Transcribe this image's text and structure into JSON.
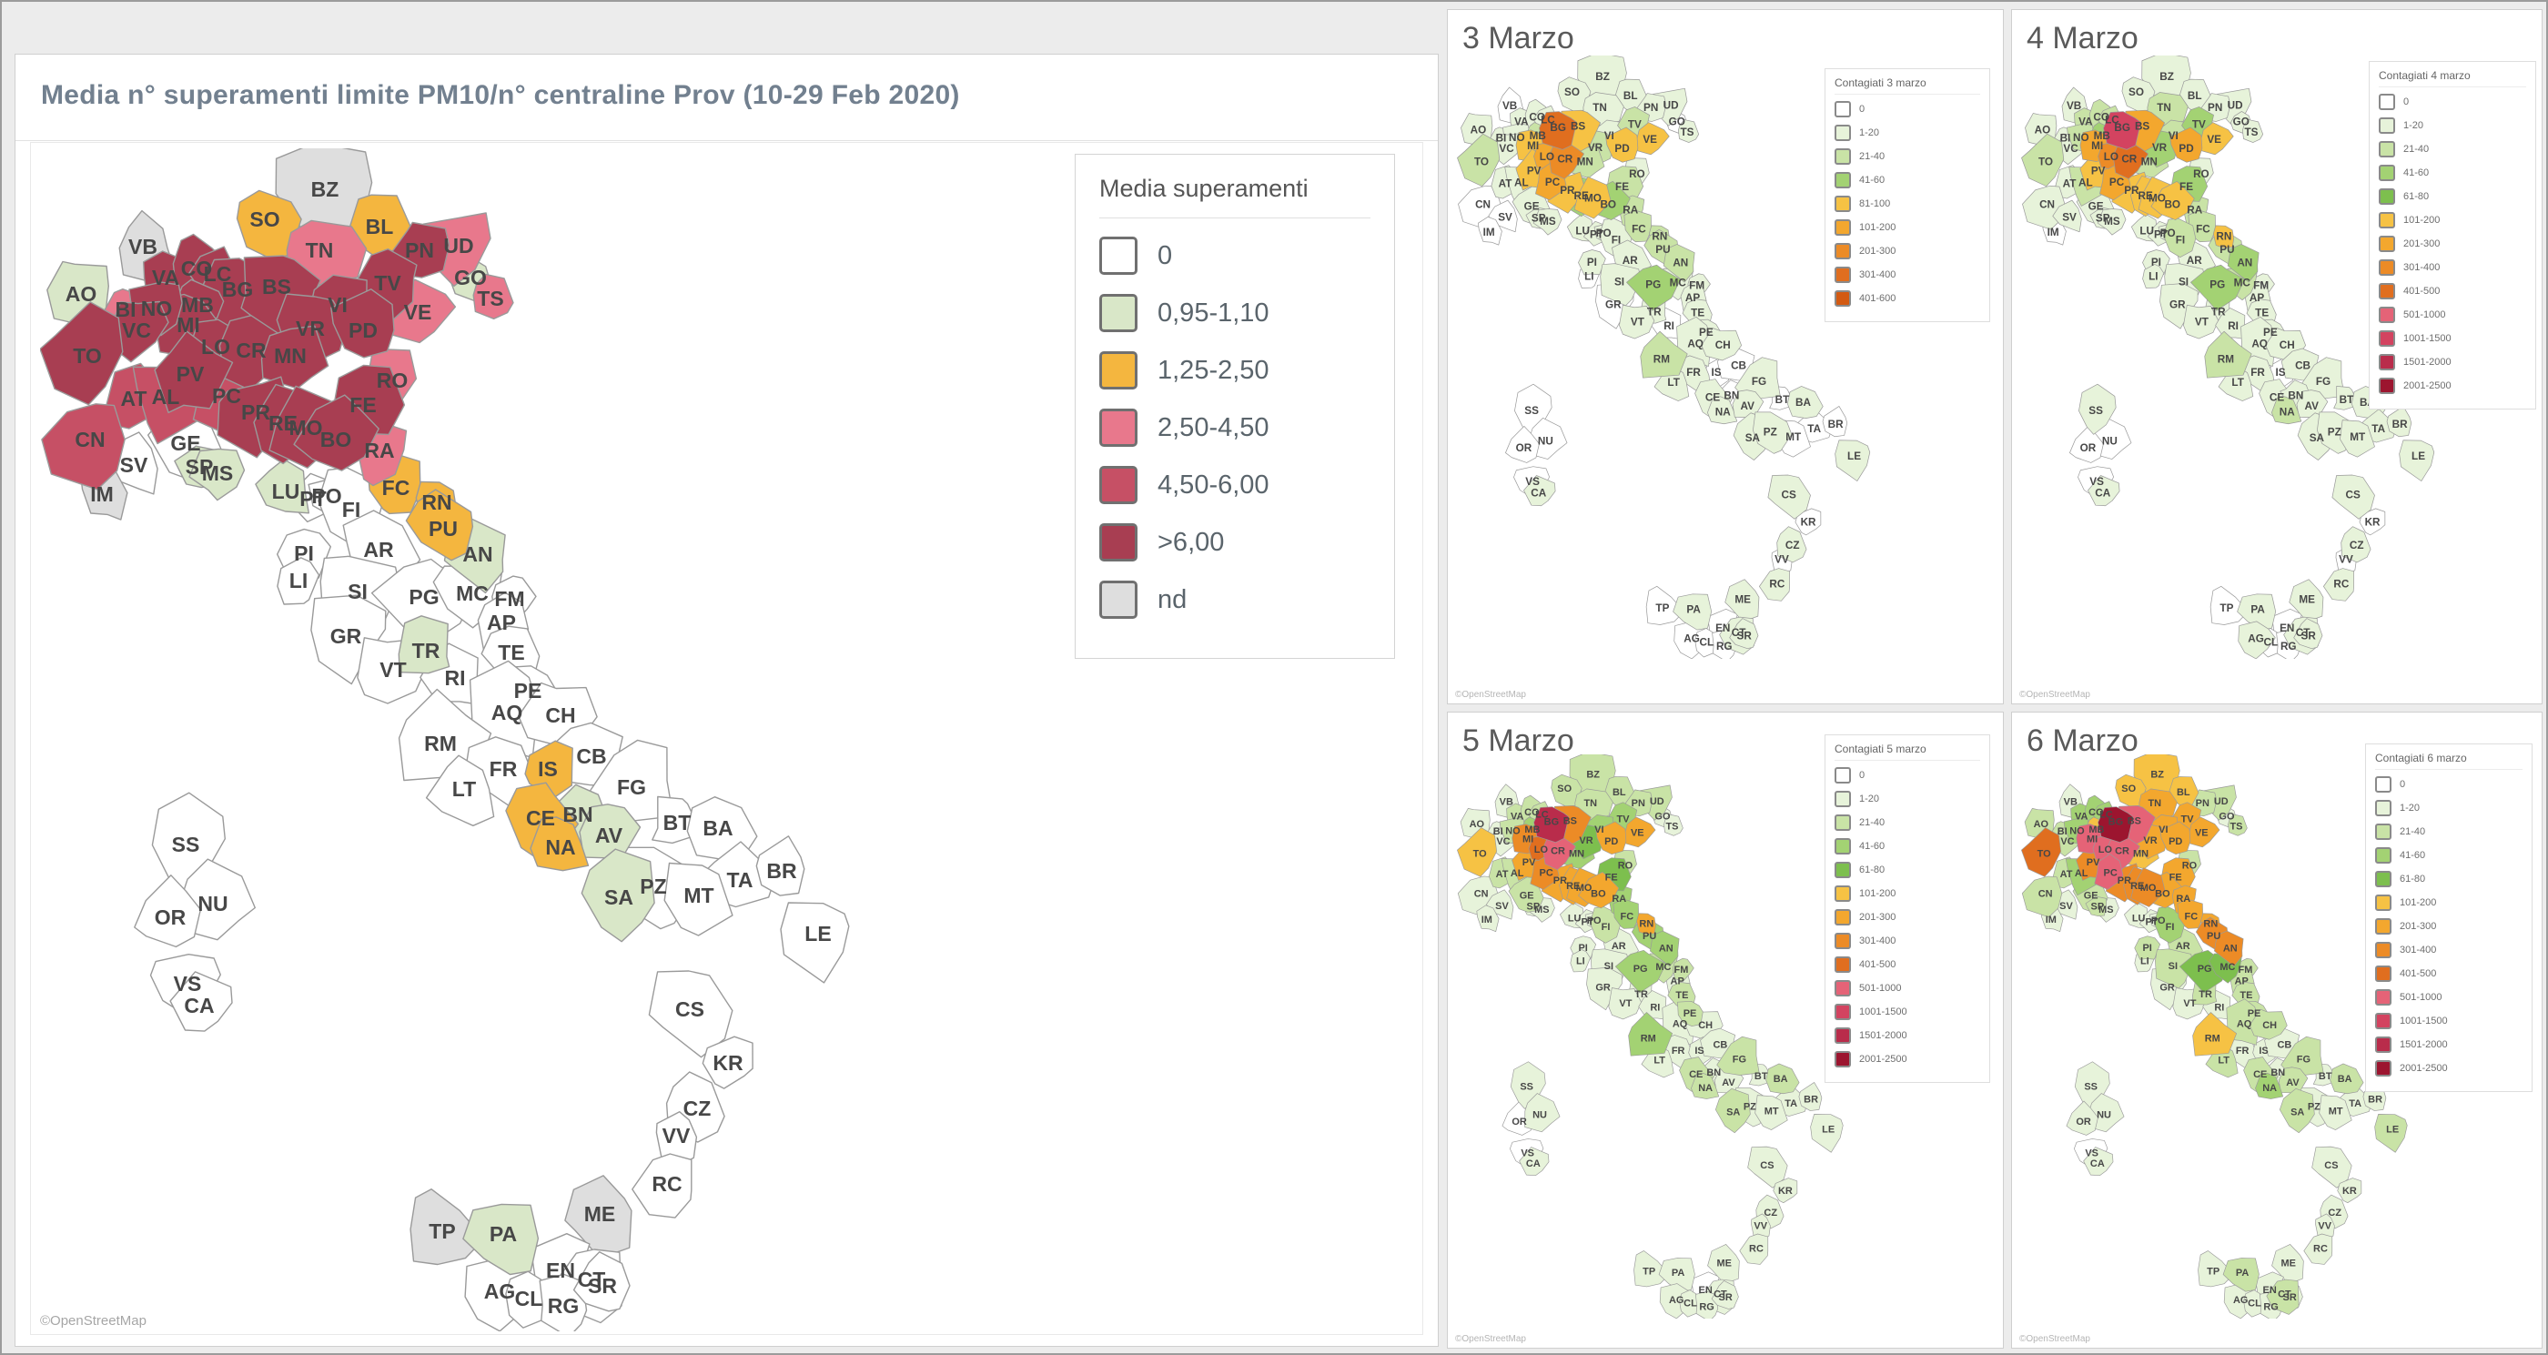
{
  "main_panel": {
    "title": "Media n° superamenti limite PM10/n° centraline Prov (10-29 Feb 2020)",
    "attribution": "©OpenStreetMap",
    "legend": {
      "title": "Media superamenti",
      "items": [
        {
          "label": "0",
          "key": "c0"
        },
        {
          "label": "0,95-1,10",
          "key": "g"
        },
        {
          "label": "1,25-2,50",
          "key": "o"
        },
        {
          "label": "2,50-4,50",
          "key": "p"
        },
        {
          "label": "4,50-6,00",
          "key": "r"
        },
        {
          "label": ">6,00",
          "key": "d"
        },
        {
          "label": "nd",
          "key": "nd"
        }
      ]
    }
  },
  "palette_main": {
    "c0": "#ffffff",
    "g": "#d9e7c8",
    "o": "#f4b63f",
    "p": "#e8788c",
    "r": "#c65065",
    "d": "#a83e52",
    "nd": "#dedede"
  },
  "palette_contagi": {
    "w": "#ffffff",
    "g1": "#e7f3da",
    "g2": "#c9e3a6",
    "g3": "#a3d273",
    "g4": "#7dbf4e",
    "o1": "#f6c244",
    "o2": "#f3a72e",
    "o3": "#ec8b26",
    "o4": "#e06e1f",
    "o5": "#d35a12",
    "p1": "#e56377",
    "r1": "#d34360",
    "r2": "#b92c4b",
    "r3": "#9c152f"
  },
  "small_maps": [
    {
      "id": "m3",
      "title": "3 Marzo",
      "legend_title": "Contagiati 3 marzo",
      "attribution": "©OpenStreetMap",
      "legend_items": [
        {
          "label": "0",
          "key": "w"
        },
        {
          "label": "1-20",
          "key": "g1"
        },
        {
          "label": "21-40",
          "key": "g2"
        },
        {
          "label": "41-60",
          "key": "g3"
        },
        {
          "label": "81-100",
          "key": "o1"
        },
        {
          "label": "101-200",
          "key": "o2"
        },
        {
          "label": "201-300",
          "key": "o3"
        },
        {
          "label": "301-400",
          "key": "o4"
        },
        {
          "label": "401-600",
          "key": "o5"
        }
      ]
    },
    {
      "id": "m4",
      "title": "4 Marzo",
      "legend_title": "Contagiati 4 marzo",
      "attribution": "©OpenStreetMap",
      "legend_items": [
        {
          "label": "0",
          "key": "w"
        },
        {
          "label": "1-20",
          "key": "g1"
        },
        {
          "label": "21-40",
          "key": "g2"
        },
        {
          "label": "41-60",
          "key": "g3"
        },
        {
          "label": "61-80",
          "key": "g4"
        },
        {
          "label": "101-200",
          "key": "o1"
        },
        {
          "label": "201-300",
          "key": "o2"
        },
        {
          "label": "301-400",
          "key": "o3"
        },
        {
          "label": "401-500",
          "key": "o4"
        },
        {
          "label": "501-1000",
          "key": "p1"
        },
        {
          "label": "1001-1500",
          "key": "r1"
        },
        {
          "label": "1501-2000",
          "key": "r2"
        },
        {
          "label": "2001-2500",
          "key": "r3"
        }
      ]
    },
    {
      "id": "m5",
      "title": "5 Marzo",
      "legend_title": "Contagiati 5 marzo",
      "attribution": "©OpenStreetMap",
      "legend_items": [
        {
          "label": "0",
          "key": "w"
        },
        {
          "label": "1-20",
          "key": "g1"
        },
        {
          "label": "21-40",
          "key": "g2"
        },
        {
          "label": "41-60",
          "key": "g3"
        },
        {
          "label": "61-80",
          "key": "g4"
        },
        {
          "label": "101-200",
          "key": "o1"
        },
        {
          "label": "201-300",
          "key": "o2"
        },
        {
          "label": "301-400",
          "key": "o3"
        },
        {
          "label": "401-500",
          "key": "o4"
        },
        {
          "label": "501-1000",
          "key": "p1"
        },
        {
          "label": "1001-1500",
          "key": "r1"
        },
        {
          "label": "1501-2000",
          "key": "r2"
        },
        {
          "label": "2001-2500",
          "key": "r3"
        }
      ]
    },
    {
      "id": "m6",
      "title": "6 Marzo",
      "legend_title": "Contagiati 6 marzo",
      "attribution": "©OpenStreetMap",
      "legend_items": [
        {
          "label": "0",
          "key": "w"
        },
        {
          "label": "1-20",
          "key": "g1"
        },
        {
          "label": "21-40",
          "key": "g2"
        },
        {
          "label": "41-60",
          "key": "g3"
        },
        {
          "label": "61-80",
          "key": "g4"
        },
        {
          "label": "101-200",
          "key": "o1"
        },
        {
          "label": "201-300",
          "key": "o2"
        },
        {
          "label": "301-400",
          "key": "o3"
        },
        {
          "label": "401-500",
          "key": "o4"
        },
        {
          "label": "501-1000",
          "key": "p1"
        },
        {
          "label": "1001-1500",
          "key": "r1"
        },
        {
          "label": "1501-2000",
          "key": "r2"
        },
        {
          "label": "2001-2500",
          "key": "r3"
        }
      ]
    }
  ],
  "provinces": [
    [
      "BZ",
      693,
      225,
      52,
      "nd",
      "g1",
      "g1",
      "g2",
      "o1"
    ],
    [
      "SO",
      627,
      258,
      40,
      "o",
      "g1",
      "g1",
      "g2",
      "o1"
    ],
    [
      "BL",
      753,
      266,
      38,
      "o",
      "g1",
      "g1",
      "g2",
      "o1"
    ],
    [
      "TN",
      687,
      292,
      42,
      "p",
      "g1",
      "g2",
      "g2",
      "o2"
    ],
    [
      "UD",
      840,
      287,
      40,
      "p",
      "g1",
      "g1",
      "g2",
      "g2"
    ],
    [
      "PN",
      797,
      292,
      32,
      "d",
      "g1",
      "g1",
      "g2",
      "g2"
    ],
    [
      "GO",
      853,
      322,
      22,
      "g",
      "w",
      "g1",
      "g1",
      "g1"
    ],
    [
      "TS",
      875,
      345,
      22,
      "p",
      "g1",
      "g1",
      "g1",
      "g2"
    ],
    [
      "VB",
      493,
      288,
      34,
      "nd",
      "w",
      "g1",
      "g1",
      "g1"
    ],
    [
      "AO",
      425,
      340,
      36,
      "g",
      "g1",
      "g1",
      "g1",
      "g2"
    ],
    [
      "VA",
      518,
      322,
      30,
      "d",
      "g1",
      "g2",
      "g2",
      "g3"
    ],
    [
      "CO",
      552,
      312,
      32,
      "d",
      "g1",
      "g2",
      "g2",
      "g3"
    ],
    [
      "LC",
      575,
      318,
      26,
      "d",
      "g1",
      "g2",
      "g2",
      "g3"
    ],
    [
      "BG",
      597,
      335,
      38,
      "d",
      "o4",
      "r1",
      "r2",
      "r3"
    ],
    [
      "BS",
      640,
      332,
      44,
      "d",
      "o1",
      "o2",
      "o3",
      "p1"
    ],
    [
      "TV",
      762,
      328,
      38,
      "d",
      "g2",
      "g3",
      "g3",
      "o2"
    ],
    [
      "VI",
      707,
      352,
      36,
      "d",
      "g1",
      "g2",
      "g3",
      "o2"
    ],
    [
      "VE",
      795,
      360,
      34,
      "p",
      "o1",
      "o1",
      "o2",
      "o2"
    ],
    [
      "VR",
      677,
      378,
      38,
      "d",
      "g2",
      "g3",
      "g4",
      "o2"
    ],
    [
      "PD",
      735,
      380,
      36,
      "d",
      "o1",
      "o2",
      "o2",
      "o2"
    ],
    [
      "MB",
      553,
      352,
      24,
      "d",
      "g2",
      "g3",
      "g3",
      "o1"
    ],
    [
      "MI",
      543,
      374,
      34,
      "d",
      "o1",
      "o2",
      "o3",
      "p1"
    ],
    [
      "BI",
      474,
      357,
      26,
      "p",
      "g1",
      "g1",
      "g1",
      "g2"
    ],
    [
      "NO",
      508,
      356,
      30,
      "d",
      "g1",
      "g2",
      "g2",
      "g3"
    ],
    [
      "VC",
      486,
      380,
      32,
      "d",
      "g1",
      "g1",
      "g1",
      "g2"
    ],
    [
      "LO",
      573,
      398,
      26,
      "d",
      "o2",
      "o3",
      "o4",
      "p1"
    ],
    [
      "CR",
      612,
      402,
      34,
      "d",
      "o3",
      "o4",
      "p1",
      "p1"
    ],
    [
      "MN",
      655,
      408,
      36,
      "d",
      "g2",
      "g2",
      "g3",
      "o1"
    ],
    [
      "TO",
      432,
      408,
      46,
      "d",
      "g2",
      "g2",
      "o1",
      "o4"
    ],
    [
      "PV",
      545,
      428,
      40,
      "d",
      "o1",
      "o1",
      "o2",
      "o3"
    ],
    [
      "AT",
      483,
      455,
      32,
      "r",
      "g1",
      "g1",
      "g2",
      "g2"
    ],
    [
      "AL",
      518,
      453,
      42,
      "r",
      "g1",
      "g2",
      "g2",
      "g3"
    ],
    [
      "PC",
      585,
      452,
      38,
      "r",
      "o2",
      "o2",
      "o3",
      "p1"
    ],
    [
      "PR",
      617,
      470,
      40,
      "d",
      "o1",
      "o1",
      "o2",
      "o3"
    ],
    [
      "RE",
      647,
      482,
      36,
      "d",
      "g3",
      "o1",
      "o2",
      "o3"
    ],
    [
      "MO",
      672,
      487,
      38,
      "d",
      "o1",
      "o1",
      "o2",
      "o3"
    ],
    [
      "FE",
      735,
      462,
      40,
      "d",
      "g2",
      "g3",
      "g4",
      "o2"
    ],
    [
      "RO",
      767,
      435,
      30,
      "p",
      "g1",
      "g1",
      "g2",
      "g2"
    ],
    [
      "BO",
      705,
      500,
      40,
      "d",
      "g3",
      "o1",
      "o2",
      "o2"
    ],
    [
      "RA",
      753,
      512,
      32,
      "p",
      "g2",
      "g2",
      "g3",
      "o2"
    ],
    [
      "CN",
      435,
      500,
      46,
      "r",
      "w",
      "g1",
      "g1",
      "g2"
    ],
    [
      "GE",
      540,
      504,
      36,
      "c0",
      "g1",
      "g1",
      "g2",
      "g2"
    ],
    [
      "SV",
      483,
      528,
      32,
      "c0",
      "w",
      "g1",
      "g1",
      "g1"
    ],
    [
      "IM",
      448,
      560,
      28,
      "nd",
      "w",
      "w",
      "g1",
      "g1"
    ],
    [
      "SP",
      555,
      530,
      24,
      "g",
      "g1",
      "g1",
      "g1",
      "g2"
    ],
    [
      "MS",
      575,
      537,
      26,
      "g",
      "g1",
      "g1",
      "g1",
      "g1"
    ],
    [
      "FC",
      771,
      553,
      34,
      "o",
      "g2",
      "g2",
      "g3",
      "o2"
    ],
    [
      "RN",
      816,
      569,
      26,
      "o",
      "g2",
      "o1",
      "o2",
      "o2"
    ],
    [
      "LU",
      650,
      557,
      28,
      "g",
      "g1",
      "g1",
      "g1",
      "g1"
    ],
    [
      "PT",
      680,
      565,
      24,
      "c0",
      "g1",
      "g1",
      "g1",
      "g1"
    ],
    [
      "PO",
      695,
      562,
      22,
      "c0",
      "g1",
      "g1",
      "g1",
      "g1"
    ],
    [
      "FI",
      722,
      577,
      40,
      "c0",
      "g1",
      "g2",
      "g2",
      "g3"
    ],
    [
      "PU",
      823,
      598,
      34,
      "o",
      "g2",
      "g2",
      "g3",
      "o3"
    ],
    [
      "AN",
      861,
      626,
      34,
      "g",
      "g2",
      "g3",
      "g3",
      "o3"
    ],
    [
      "AR",
      752,
      621,
      40,
      "c0",
      "g1",
      "g1",
      "g1",
      "g2"
    ],
    [
      "PI",
      670,
      625,
      32,
      "c0",
      "g1",
      "g1",
      "g1",
      "g2"
    ],
    [
      "LI",
      664,
      655,
      28,
      "c0",
      "w",
      "g1",
      "g1",
      "g1"
    ],
    [
      "SI",
      729,
      667,
      42,
      "c0",
      "g1",
      "g1",
      "g1",
      "g2"
    ],
    [
      "PG",
      802,
      673,
      48,
      "c0",
      "g3",
      "g3",
      "g3",
      "g4"
    ],
    [
      "MC",
      855,
      669,
      36,
      "c0",
      "g1",
      "g2",
      "g2",
      "g4"
    ],
    [
      "FM",
      896,
      675,
      24,
      "c0",
      "g1",
      "g1",
      "g2",
      "g2"
    ],
    [
      "AP",
      887,
      701,
      28,
      "c0",
      "g1",
      "g1",
      "g1",
      "g2"
    ],
    [
      "TE",
      898,
      734,
      34,
      "c0",
      "g1",
      "g1",
      "g2",
      "g2"
    ],
    [
      "GR",
      716,
      716,
      42,
      "c0",
      "w",
      "g1",
      "g1",
      "g1"
    ],
    [
      "TR",
      804,
      732,
      30,
      "g",
      "g1",
      "g1",
      "g1",
      "g2"
    ],
    [
      "VT",
      768,
      753,
      38,
      "c0",
      "g1",
      "g1",
      "g1",
      "g1"
    ],
    [
      "RI",
      836,
      762,
      32,
      "c0",
      "w",
      "g1",
      "g1",
      "g1"
    ],
    [
      "PE",
      916,
      776,
      30,
      "c0",
      "g1",
      "g1",
      "g2",
      "g2"
    ],
    [
      "AQ",
      893,
      800,
      46,
      "c0",
      "g1",
      "g1",
      "g1",
      "g2"
    ],
    [
      "CH",
      952,
      803,
      38,
      "c0",
      "g1",
      "g1",
      "g1",
      "g2"
    ],
    [
      "RM",
      820,
      834,
      46,
      "c0",
      "g2",
      "g2",
      "g3",
      "o1"
    ],
    [
      "FR",
      889,
      862,
      36,
      "c0",
      "g1",
      "g1",
      "g1",
      "g1"
    ],
    [
      "LT",
      846,
      884,
      36,
      "c0",
      "g1",
      "g1",
      "g1",
      "g2"
    ],
    [
      "IS",
      938,
      862,
      28,
      "o",
      "w",
      "w",
      "g1",
      "g1"
    ],
    [
      "CB",
      986,
      848,
      38,
      "c0",
      "w",
      "g1",
      "g1",
      "g1"
    ],
    [
      "FG",
      1030,
      882,
      46,
      "c0",
      "g1",
      "g1",
      "g2",
      "g2"
    ],
    [
      "CE",
      930,
      916,
      34,
      "o",
      "g1",
      "g1",
      "g2",
      "g2"
    ],
    [
      "BN",
      971,
      912,
      30,
      "g",
      "w",
      "g1",
      "g1",
      "g1"
    ],
    [
      "NA",
      952,
      948,
      30,
      "o",
      "g1",
      "g2",
      "g2",
      "g3"
    ],
    [
      "AV",
      1005,
      935,
      32,
      "g",
      "g1",
      "g1",
      "g1",
      "g2"
    ],
    [
      "SA",
      1016,
      1003,
      42,
      "g",
      "g1",
      "g1",
      "g2",
      "g2"
    ],
    [
      "BT",
      1080,
      921,
      28,
      "c0",
      "w",
      "g1",
      "g1",
      "g1"
    ],
    [
      "BA",
      1125,
      927,
      36,
      "c0",
      "g1",
      "g1",
      "g2",
      "g2"
    ],
    [
      "TA",
      1149,
      984,
      36,
      "c0",
      "w",
      "g1",
      "g1",
      "g1"
    ],
    [
      "BR",
      1195,
      974,
      30,
      "c0",
      "w",
      "g1",
      "g1",
      "g1"
    ],
    [
      "LE",
      1235,
      1043,
      42,
      "c0",
      "g1",
      "g1",
      "g1",
      "g2"
    ],
    [
      "PZ",
      1054,
      991,
      46,
      "c0",
      "g1",
      "g1",
      "g1",
      "g1"
    ],
    [
      "MT",
      1104,
      1001,
      38,
      "c0",
      "w",
      "g1",
      "g1",
      "g1"
    ],
    [
      "CS",
      1094,
      1126,
      44,
      "c0",
      "g1",
      "g1",
      "g1",
      "g1"
    ],
    [
      "KR",
      1136,
      1185,
      28,
      "c0",
      "w",
      "w",
      "g1",
      "g1"
    ],
    [
      "CZ",
      1102,
      1235,
      32,
      "c0",
      "g1",
      "g1",
      "g1",
      "g1"
    ],
    [
      "VV",
      1079,
      1265,
      26,
      "c0",
      "w",
      "w",
      "g1",
      "g1"
    ],
    [
      "RC",
      1069,
      1318,
      32,
      "c0",
      "g1",
      "g1",
      "g1",
      "g1"
    ],
    [
      "ME",
      995,
      1351,
      40,
      "nd",
      "g1",
      "g1",
      "g1",
      "g1"
    ],
    [
      "TP",
      822,
      1370,
      38,
      "nd",
      "w",
      "w",
      "g1",
      "g1"
    ],
    [
      "PA",
      889,
      1373,
      40,
      "g",
      "g1",
      "g1",
      "g1",
      "g2"
    ],
    [
      "EN",
      952,
      1413,
      34,
      "c0",
      "w",
      "w",
      "w",
      "g1"
    ],
    [
      "CT",
      986,
      1423,
      40,
      "c0",
      "g1",
      "g1",
      "g1",
      "g2"
    ],
    [
      "AG",
      885,
      1436,
      38,
      "c0",
      "w",
      "g1",
      "g1",
      "g1"
    ],
    [
      "CL",
      917,
      1444,
      28,
      "c0",
      "w",
      "w",
      "g1",
      "g1"
    ],
    [
      "RG",
      955,
      1452,
      30,
      "c0",
      "w",
      "w",
      "g1",
      "g1"
    ],
    [
      "SR",
      998,
      1430,
      30,
      "c0",
      "g1",
      "g1",
      "g1",
      "g1"
    ],
    [
      "SS",
      540,
      945,
      46,
      "c0",
      "w",
      "g1",
      "g1",
      "g1"
    ],
    [
      "NU",
      570,
      1010,
      44,
      "c0",
      "w",
      "w",
      "g1",
      "g1"
    ],
    [
      "OR",
      523,
      1025,
      36,
      "c0",
      "w",
      "w",
      "w",
      "g1"
    ],
    [
      "VS",
      542,
      1098,
      34,
      "c0",
      "w",
      "w",
      "w",
      "w"
    ],
    [
      "CA",
      555,
      1122,
      34,
      "c0",
      "g1",
      "g1",
      "g1",
      "g1"
    ]
  ]
}
